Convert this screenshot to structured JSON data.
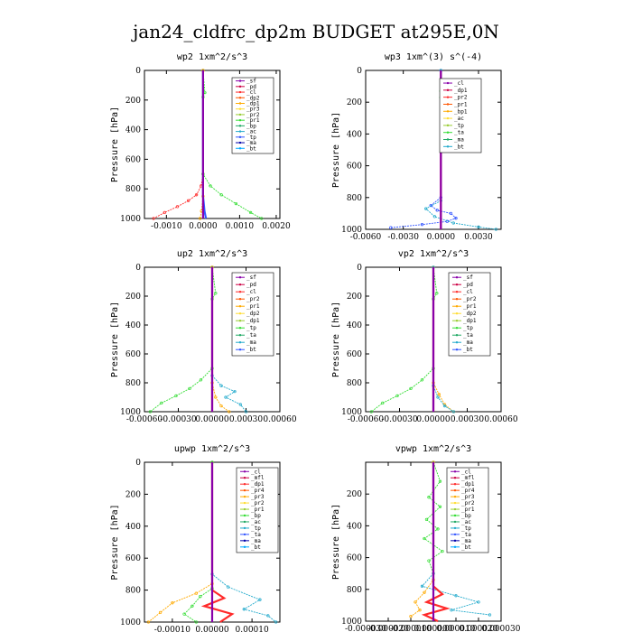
{
  "figure_title": "jan24_cldfrc_dp2m  BUDGET at295E,0N",
  "chart_data": [
    {
      "type": "line",
      "title": "wp2  1xm^2/s^3",
      "ylabel": "Pressure [hPa]",
      "xlim": [
        -0.0016,
        0.0021
      ],
      "ylim": [
        1000,
        0
      ],
      "xticks": [
        -0.001,
        0.0,
        0.001,
        0.002
      ],
      "xtick_labels": [
        "-0.0010",
        "0.0000",
        "0.0010",
        "0.0020"
      ],
      "yticks": [
        0,
        200,
        400,
        600,
        800,
        1000
      ],
      "ytick_labels": [
        "0",
        "200",
        "400",
        "600",
        "800",
        "1000"
      ],
      "legend": [
        "_sf",
        "_pd",
        "_cl",
        "_dp2",
        "_dp1",
        "_pr3",
        "_pr2",
        "_pr1",
        "_bp",
        "_ac",
        "_tp",
        "_ma",
        "_bt"
      ],
      "series": [
        {
          "color": "#ff2a2a",
          "x": [
            0,
            0,
            -5e-05,
            -0.00018,
            -0.0004,
            -0.0007,
            -0.00105,
            -0.00135
          ],
          "y": [
            0,
            700,
            780,
            840,
            880,
            920,
            960,
            1000
          ]
        },
        {
          "color": "#33dd33",
          "x": [
            0,
            5e-05,
            0,
            0,
            0.0002,
            0.0005,
            0.0009,
            0.0013,
            0.0016
          ],
          "y": [
            0,
            150,
            180,
            700,
            780,
            840,
            900,
            960,
            1000
          ]
        },
        {
          "color": "#ffaa00",
          "x": [
            0,
            0,
            -4e-05,
            -8e-05
          ],
          "y": [
            0,
            850,
            950,
            1000
          ]
        },
        {
          "color": "#3355ff",
          "x": [
            0,
            0,
            4e-05,
            8e-05
          ],
          "y": [
            0,
            850,
            950,
            1000
          ]
        },
        {
          "color": "#8800aa",
          "x": [
            0,
            0
          ],
          "y": [
            0,
            1000
          ]
        }
      ]
    },
    {
      "type": "line",
      "title": "wp3  1xm^(3) s^(-4)",
      "ylabel": "Pressure [hPa]",
      "xlim": [
        -0.006,
        0.0048
      ],
      "ylim": [
        1000,
        0
      ],
      "xticks": [
        -0.006,
        -0.003,
        0.0,
        0.003
      ],
      "xtick_labels": [
        "-0.0060",
        "-0.0030",
        "0.0000",
        "0.0030"
      ],
      "yticks": [
        0,
        200,
        400,
        600,
        800,
        1000
      ],
      "ytick_labels": [
        "0",
        "200",
        "400",
        "600",
        "800",
        "1000"
      ],
      "legend": [
        "_cl",
        "_dp1",
        "_pr2",
        "_pr1",
        "_bp1",
        "_ac",
        "_tp",
        "_ta",
        "_ma",
        "_bt"
      ],
      "series": [
        {
          "color": "#3355ff",
          "x": [
            0,
            0,
            -0.0008,
            -0.0003,
            0.0008,
            0.0012,
            0.0005,
            -0.0015,
            -0.004
          ],
          "y": [
            0,
            800,
            850,
            880,
            900,
            930,
            950,
            970,
            990
          ]
        },
        {
          "color": "#22aacc",
          "x": [
            0,
            0,
            -0.0012,
            -0.0005,
            0.001,
            0.003,
            0.0044
          ],
          "y": [
            0,
            820,
            870,
            920,
            960,
            985,
            1000
          ]
        },
        {
          "color": "#33dd33",
          "x": [
            0,
            0.00012,
            0
          ],
          "y": [
            130,
            150,
            170
          ]
        },
        {
          "color": "#ff2a2a",
          "x": [
            0,
            0
          ],
          "y": [
            0,
            1000
          ]
        },
        {
          "color": "#8800aa",
          "x": [
            0,
            0
          ],
          "y": [
            0,
            1000
          ]
        }
      ]
    },
    {
      "type": "line",
      "title": "up2  1xm^2/s^3",
      "ylabel": "Pressure [hPa]",
      "xlim": [
        -0.0006,
        0.0006
      ],
      "ylim": [
        1000,
        0
      ],
      "xticks": [
        -0.0006,
        -0.0003,
        0.0,
        0.0003,
        0.0006
      ],
      "xtick_labels": [
        "-0.00060",
        "-0.00030",
        "0.00000",
        "0.00030",
        "0.00060"
      ],
      "yticks": [
        0,
        200,
        400,
        600,
        800,
        1000
      ],
      "ytick_labels": [
        "0",
        "200",
        "400",
        "600",
        "800",
        "1000"
      ],
      "legend": [
        "_sf",
        "_pd",
        "_cl",
        "_pr2",
        "_pr1",
        "_dp2",
        "_dp1",
        "_tp",
        "_ta",
        "_ma",
        "_bt"
      ],
      "series": [
        {
          "color": "#33dd33",
          "x": [
            0,
            3e-05,
            0,
            0,
            -0.0001,
            -0.0002,
            -0.00032,
            -0.00045,
            -0.00055
          ],
          "y": [
            0,
            180,
            220,
            700,
            780,
            840,
            890,
            940,
            1000
          ]
        },
        {
          "color": "#22aacc",
          "x": [
            0,
            0,
            8e-05,
            0.0002,
            0.00012,
            0.00025,
            0.0003
          ],
          "y": [
            0,
            750,
            820,
            860,
            900,
            950,
            1000
          ]
        },
        {
          "color": "#ffaa00",
          "x": [
            0,
            0,
            3e-05,
            8e-05,
            0.00015
          ],
          "y": [
            0,
            800,
            900,
            960,
            1000
          ]
        },
        {
          "color": "#ff2a2a",
          "x": [
            0,
            0
          ],
          "y": [
            0,
            1000
          ]
        },
        {
          "color": "#8800aa",
          "x": [
            0,
            0
          ],
          "y": [
            0,
            1000
          ]
        }
      ]
    },
    {
      "type": "line",
      "title": "vp2  1xm^2/s^3",
      "ylabel": "Pressure [hPa]",
      "xlim": [
        -0.0006,
        0.0006
      ],
      "ylim": [
        1000,
        0
      ],
      "xticks": [
        -0.0006,
        -0.0003,
        0.0,
        0.0003,
        0.0006
      ],
      "xtick_labels": [
        "-0.00060",
        "-0.00030",
        "0.00000",
        "0.00030",
        "0.00060"
      ],
      "yticks": [
        0,
        200,
        400,
        600,
        800,
        1000
      ],
      "ytick_labels": [
        "0",
        "200",
        "400",
        "600",
        "800",
        "1000"
      ],
      "legend": [
        "_sf",
        "_pd",
        "_cl",
        "_pr2",
        "_pr1",
        "_dp2",
        "_dp1",
        "_tp",
        "_ta",
        "_ma",
        "_bt"
      ],
      "series": [
        {
          "color": "#33dd33",
          "x": [
            0,
            3e-05,
            0,
            0,
            -0.0001,
            -0.0002,
            -0.00032,
            -0.00045,
            -0.00055
          ],
          "y": [
            0,
            180,
            220,
            700,
            780,
            840,
            890,
            940,
            1000
          ]
        },
        {
          "color": "#ffaa00",
          "x": [
            0,
            0,
            5e-05,
            0.0001,
            0.00018
          ],
          "y": [
            0,
            800,
            880,
            950,
            1000
          ]
        },
        {
          "color": "#22aacc",
          "x": [
            0,
            0,
            4e-05,
            0.0001,
            0.00018
          ],
          "y": [
            0,
            820,
            900,
            960,
            1000
          ]
        },
        {
          "color": "#ff2a2a",
          "x": [
            0,
            0
          ],
          "y": [
            0,
            1000
          ]
        },
        {
          "color": "#8800aa",
          "x": [
            0,
            0
          ],
          "y": [
            0,
            1000
          ]
        }
      ]
    },
    {
      "type": "line",
      "title": "upwp  1xm^2/s^3",
      "ylabel": "Pressure [hPa]",
      "xlim": [
        -0.00017,
        0.00017
      ],
      "ylim": [
        1000,
        0
      ],
      "xticks": [
        -0.0001,
        0.0,
        0.0001
      ],
      "xtick_labels": [
        "-0.00010",
        "0.00000",
        "0.00010"
      ],
      "yticks": [
        0,
        200,
        400,
        600,
        800,
        1000
      ],
      "ytick_labels": [
        "0",
        "200",
        "400",
        "600",
        "800",
        "1000"
      ],
      "legend": [
        "_cl",
        "_mfl",
        "_dp1",
        "_pr4",
        "_pr3",
        "_pr2",
        "_pr1",
        "_bp",
        "_ac",
        "_tp",
        "_ta",
        "_ma",
        "_bt"
      ],
      "series": [
        {
          "color": "#22aacc",
          "x": [
            0,
            0,
            4e-05,
            0.00012,
            8e-05,
            0.00014,
            0.00016
          ],
          "y": [
            0,
            700,
            780,
            860,
            920,
            960,
            1000
          ]
        },
        {
          "color": "#ffaa00",
          "x": [
            0,
            0,
            -4e-05,
            -0.0001,
            -0.00013,
            -0.00016
          ],
          "y": [
            0,
            760,
            820,
            880,
            940,
            1000
          ]
        },
        {
          "color": "#33dd33",
          "x": [
            0,
            0,
            -3e-05,
            -5e-05,
            -7e-05,
            -4e-05
          ],
          "y": [
            0,
            790,
            840,
            900,
            950,
            1000
          ]
        },
        {
          "color": "#ff2a2a",
          "x": [
            0,
            0,
            3e-05,
            -2e-05,
            5e-05,
            2e-05
          ],
          "y": [
            0,
            800,
            850,
            900,
            950,
            1000
          ]
        },
        {
          "color": "#8800aa",
          "x": [
            0,
            0
          ],
          "y": [
            0,
            1000
          ]
        }
      ]
    },
    {
      "type": "line",
      "title": "vpwp  1xm^2/s^3",
      "ylabel": "Pressure [hPa]",
      "xlim": [
        -3e-05,
        3e-05
      ],
      "ylim": [
        1000,
        0
      ],
      "xticks": [
        -3e-05,
        -2e-05,
        -1e-05,
        0.0,
        1e-05,
        2e-05,
        3e-05
      ],
      "xtick_labels": [
        "-0.000030",
        "-0.000020",
        "-0.000010",
        "0.000000",
        "0.000010",
        "0.000020",
        "0.000030"
      ],
      "yticks": [
        200,
        400,
        600,
        800,
        1000
      ],
      "ytick_labels": [
        "200",
        "400",
        "600",
        "800",
        "1000"
      ],
      "legend": [
        "_cl",
        "_mfl",
        "_dp1",
        "_pr4",
        "_pr3",
        "_pr2",
        "_pr1",
        "_bp",
        "_ac",
        "_tp",
        "_ta",
        "_ma",
        "_bt"
      ],
      "series": [
        {
          "color": "#33dd33",
          "x": [
            0,
            3e-06,
            -2e-06,
            3e-06,
            -3e-06,
            2e-06,
            -4e-06,
            4e-06,
            -2e-06,
            0
          ],
          "y": [
            0,
            120,
            220,
            280,
            360,
            420,
            480,
            560,
            620,
            700
          ]
        },
        {
          "color": "#22aacc",
          "x": [
            0,
            0,
            -5e-06,
            1e-05,
            2e-05,
            8e-06,
            2.5e-05
          ],
          "y": [
            0,
            700,
            780,
            840,
            880,
            930,
            960
          ]
        },
        {
          "color": "#ffaa00",
          "x": [
            0,
            0,
            -4e-06,
            -8e-06,
            -6e-06,
            -1e-05
          ],
          "y": [
            0,
            740,
            820,
            880,
            930,
            970
          ]
        },
        {
          "color": "#ff2a2a",
          "x": [
            0,
            0,
            4e-06,
            -3e-06,
            6e-06,
            -4e-06,
            2e-06
          ],
          "y": [
            0,
            780,
            830,
            880,
            920,
            960,
            1000
          ]
        },
        {
          "color": "#8800aa",
          "x": [
            0,
            0
          ],
          "y": [
            0,
            1000
          ]
        }
      ]
    }
  ]
}
